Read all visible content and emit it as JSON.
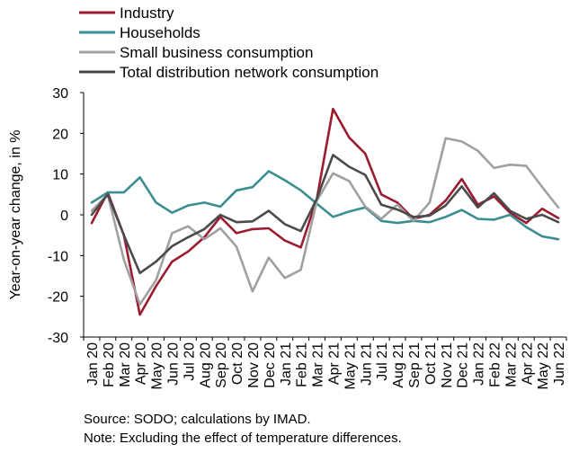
{
  "chart_data": {
    "type": "line",
    "ylabel": "Year-on-year change, in %",
    "ylim": [
      -30,
      30
    ],
    "yticks": [
      30,
      20,
      10,
      0,
      -10,
      -20,
      -30
    ],
    "grid": false,
    "legend_placement": "top-left",
    "categories": [
      "Jan 20",
      "Feb 20",
      "Mar 20",
      "Apr 20",
      "May 20",
      "Jun 20",
      "Jul 20",
      "Aug 20",
      "Sep 20",
      "Oct 20",
      "Nov 20",
      "Dec 20",
      "Jan 21",
      "Feb 21",
      "Mar 21",
      "Apr 21",
      "May 21",
      "Jun 21",
      "Jul 21",
      "Aug 21",
      "Sep 21",
      "Oct 21",
      "Nov 21",
      "Dec 21",
      "Jan 22",
      "Feb 22",
      "Mar 22",
      "Apr 22",
      "May 22",
      "Jun 22"
    ],
    "series": [
      {
        "name": "Industry",
        "color": "#9b1b30",
        "values": [
          -2,
          5.5,
          -5,
          -24.5,
          -17.5,
          -11.5,
          -9,
          -5.5,
          -0.5,
          -4.5,
          -3.5,
          -3.3,
          -6.3,
          -8,
          4,
          26,
          19,
          15,
          5,
          3,
          -1,
          0,
          3.5,
          8.8,
          2.5,
          4.5,
          0.5,
          -2,
          1.5,
          -0.8
        ]
      },
      {
        "name": "Households",
        "color": "#3a8e91",
        "values": [
          3,
          5.5,
          5.5,
          9.2,
          3,
          0.5,
          2.3,
          3,
          2,
          6,
          6.8,
          10.7,
          8.5,
          6,
          2.7,
          -0.5,
          0.8,
          1.8,
          -1.5,
          -2,
          -1.5,
          -1.8,
          -0.5,
          1.2,
          -1,
          -1.2,
          0,
          -3,
          -5.3,
          -6
        ]
      },
      {
        "name": "Small business consumption",
        "color": "#a0a0a0",
        "values": [
          1,
          5,
          -11,
          -22,
          -16,
          -4.5,
          -2.8,
          -6,
          -3.3,
          -7.8,
          -18.8,
          -10.5,
          -15.5,
          -13.5,
          3.5,
          10.2,
          8.3,
          2,
          -1,
          2.5,
          -1.5,
          3,
          18.8,
          18,
          15.7,
          11.5,
          12.3,
          12,
          6.8,
          1.8
        ]
      },
      {
        "name": "Total distribution network consumption",
        "color": "#4a4a4a",
        "values": [
          0,
          5,
          -5,
          -14.3,
          -11.5,
          -7.7,
          -5.5,
          -3.5,
          0,
          -1.8,
          -1.6,
          1,
          -2.3,
          -4,
          4,
          14.7,
          11.8,
          9.8,
          2.5,
          1.3,
          -0.5,
          -0.2,
          2.3,
          7,
          1.8,
          5.3,
          1,
          -1,
          0,
          -1.8
        ]
      }
    ]
  },
  "notes": {
    "source": "Source: SODO; calculations by IMAD.",
    "note": "Note: Excluding the effect of temperature differences."
  }
}
